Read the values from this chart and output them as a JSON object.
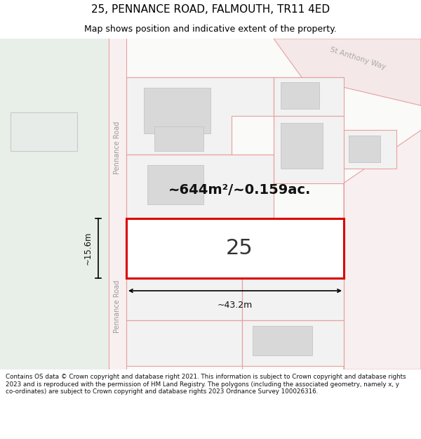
{
  "title": "25, PENNANCE ROAD, FALMOUTH, TR11 4ED",
  "subtitle": "Map shows position and indicative extent of the property.",
  "footer_text": "Contains OS data © Crown copyright and database right 2021. This information is subject to Crown copyright and database rights 2023 and is reproduced with the permission of HM Land Registry. The polygons (including the associated geometry, namely x, y co-ordinates) are subject to Crown copyright and database rights 2023 Ordnance Survey 100026316.",
  "map_bg": "#f0f4f0",
  "left_strip_bg": "#e8efe8",
  "road_line_color": "#e8a0a0",
  "highlighted_plot_border": "#dd0000",
  "plot_fill_light": "#f2f2f2",
  "building_fill": "#d8d8d8",
  "street_label_pennance": "Pennance Road",
  "street_label_st_anthony": "St Anthony Way",
  "area_label": "~644m²/~0.159ac.",
  "plot_number": "25",
  "dim_width": "~43.2m",
  "dim_height": "~15.6m"
}
